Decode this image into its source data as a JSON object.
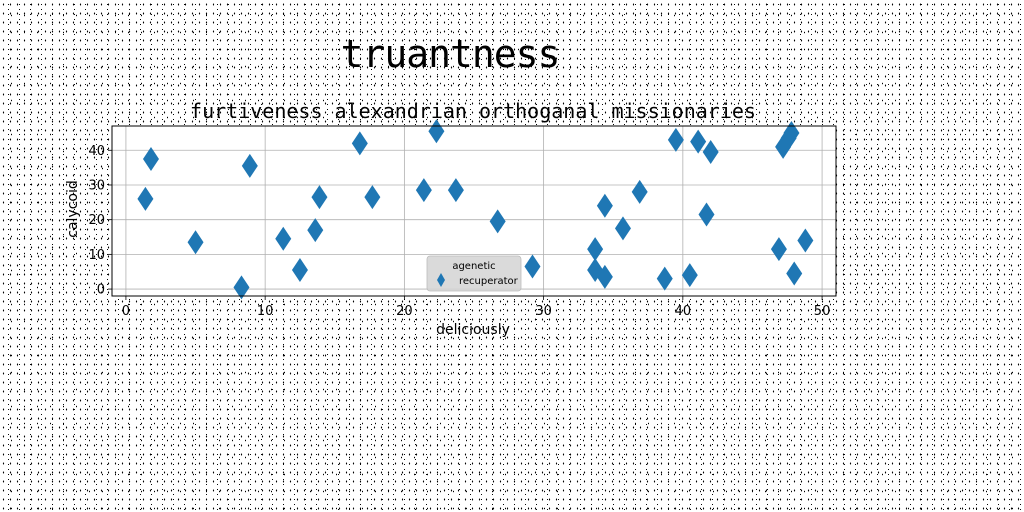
{
  "figure": {
    "title": "truantness"
  },
  "chart_data": {
    "type": "scatter",
    "title": "furtiveness alexandrian orthoganal missionaries",
    "xlabel": "deliciously",
    "ylabel": "calycoid",
    "xlim": [
      -1,
      51
    ],
    "ylim": [
      -2,
      47
    ],
    "xticks": [
      0,
      10,
      20,
      30,
      40,
      50
    ],
    "yticks": [
      0,
      10,
      20,
      30,
      40
    ],
    "grid": true,
    "legend": {
      "position": "lower-center",
      "title": "agenetic"
    },
    "marker": "diamond",
    "color": "#1f77b4",
    "series": [
      {
        "name": "recuperator",
        "points": [
          [
            1.4,
            26
          ],
          [
            1.8,
            37.5
          ],
          [
            5.0,
            13.5
          ],
          [
            8.3,
            0.5
          ],
          [
            8.9,
            35.5
          ],
          [
            11.3,
            14.5
          ],
          [
            12.5,
            5.5
          ],
          [
            13.6,
            17
          ],
          [
            13.9,
            26.5
          ],
          [
            16.8,
            42
          ],
          [
            17.7,
            26.5
          ],
          [
            21.4,
            28.5
          ],
          [
            22.3,
            45.5
          ],
          [
            23.7,
            28.5
          ],
          [
            26.7,
            19.5
          ],
          [
            29.2,
            6.5
          ],
          [
            33.7,
            11.5
          ],
          [
            33.7,
            5.5
          ],
          [
            34.4,
            3.5
          ],
          [
            34.4,
            24
          ],
          [
            35.7,
            17.5
          ],
          [
            36.9,
            28
          ],
          [
            38.7,
            3
          ],
          [
            39.5,
            43
          ],
          [
            40.5,
            4
          ],
          [
            41.1,
            42.5
          ],
          [
            41.7,
            21.5
          ],
          [
            42.0,
            39.5
          ],
          [
            46.9,
            11.5
          ],
          [
            47.2,
            41
          ],
          [
            47.6,
            43.5
          ],
          [
            47.8,
            45
          ],
          [
            48.0,
            4.5
          ],
          [
            48.8,
            14
          ]
        ]
      }
    ]
  }
}
